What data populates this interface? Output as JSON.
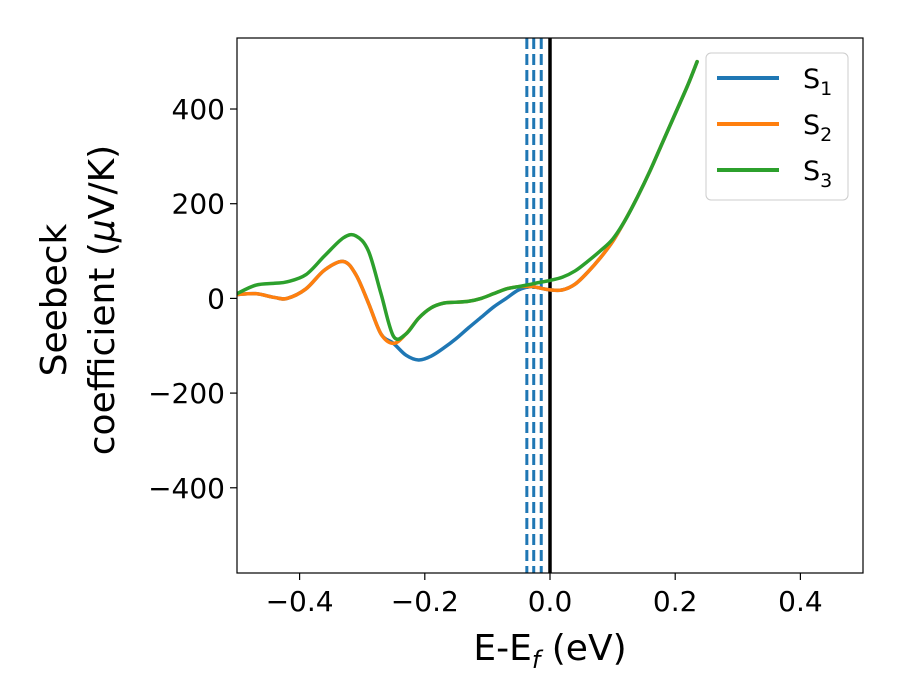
{
  "chart_data": {
    "type": "line",
    "xlabel": {
      "main": "E-E",
      "sub": "f",
      "unit": " (eV)"
    },
    "ylabel": {
      "line1": "Seebeck",
      "line2_prefix": "coefficient  (",
      "mu": "μ",
      "line2_suffix": "V/K)"
    },
    "xlim": [
      -0.5,
      0.5
    ],
    "ylim": [
      -580,
      550
    ],
    "xticks": [
      -0.4,
      -0.2,
      0.0,
      0.2,
      0.4
    ],
    "xtick_labels": [
      "−0.4",
      "−0.2",
      "0.0",
      "0.2",
      "0.4"
    ],
    "yticks": [
      -400,
      -200,
      0,
      200,
      400
    ],
    "ytick_labels": [
      "−400",
      "−200",
      "0",
      "200",
      "400"
    ],
    "grid": false,
    "legend_position": "top-right",
    "vertical_lines": [
      {
        "x": -0.037,
        "style": "dashed",
        "color": "#1f77b4"
      },
      {
        "x": -0.026,
        "style": "dashed",
        "color": "#1f77b4"
      },
      {
        "x": -0.014,
        "style": "dashed",
        "color": "#1f77b4"
      },
      {
        "x": 0.0,
        "style": "solid",
        "color": "#000000"
      }
    ],
    "series": [
      {
        "name": "S",
        "sub": "1",
        "color": "#1f77b4",
        "x": [
          -0.5,
          -0.47,
          -0.44,
          -0.42,
          -0.39,
          -0.36,
          -0.33,
          -0.31,
          -0.29,
          -0.27,
          -0.25,
          -0.23,
          -0.21,
          -0.19,
          -0.17,
          -0.15,
          -0.13,
          -0.11,
          -0.09,
          -0.07,
          -0.05,
          -0.03,
          -0.02,
          0.0,
          0.02,
          0.04,
          0.06,
          0.08,
          0.1,
          0.12,
          0.14,
          0.16,
          0.18,
          0.2,
          0.22,
          0.235
        ],
        "y": [
          8,
          10,
          2,
          0,
          20,
          60,
          78,
          50,
          -10,
          -75,
          -95,
          -120,
          -130,
          -122,
          -105,
          -85,
          -62,
          -40,
          -18,
          0,
          18,
          25,
          23,
          18,
          18,
          30,
          55,
          85,
          120,
          165,
          215,
          270,
          330,
          390,
          450,
          500
        ]
      },
      {
        "name": "S",
        "sub": "2",
        "color": "#ff7f0e",
        "x": [
          -0.5,
          -0.47,
          -0.44,
          -0.42,
          -0.39,
          -0.36,
          -0.33,
          -0.31,
          -0.29,
          -0.27,
          -0.25,
          -0.23,
          -0.21,
          -0.19,
          -0.17,
          -0.15,
          -0.13,
          -0.11,
          -0.09,
          -0.07,
          -0.05,
          -0.03,
          -0.02,
          0.0,
          0.02,
          0.04,
          0.06,
          0.08,
          0.1,
          0.12,
          0.14,
          0.16,
          0.18,
          0.2,
          0.22,
          0.235
        ],
        "y": [
          8,
          10,
          2,
          0,
          20,
          60,
          78,
          50,
          -10,
          -75,
          -95,
          -75,
          -42,
          -20,
          -10,
          -8,
          -6,
          0,
          10,
          20,
          25,
          25,
          23,
          18,
          18,
          30,
          55,
          85,
          120,
          165,
          215,
          270,
          330,
          390,
          450,
          500
        ]
      },
      {
        "name": "S",
        "sub": "3",
        "color": "#2ca02c",
        "x": [
          -0.5,
          -0.47,
          -0.44,
          -0.42,
          -0.39,
          -0.36,
          -0.33,
          -0.31,
          -0.29,
          -0.27,
          -0.25,
          -0.23,
          -0.21,
          -0.19,
          -0.17,
          -0.15,
          -0.13,
          -0.11,
          -0.09,
          -0.07,
          -0.05,
          -0.03,
          -0.02,
          0.0,
          0.02,
          0.04,
          0.06,
          0.08,
          0.1,
          0.12,
          0.14,
          0.16,
          0.18,
          0.2,
          0.22,
          0.235
        ],
        "y": [
          10,
          28,
          32,
          35,
          50,
          90,
          128,
          132,
          100,
          10,
          -80,
          -75,
          -42,
          -20,
          -10,
          -8,
          -6,
          0,
          10,
          20,
          25,
          30,
          33,
          38,
          45,
          58,
          78,
          100,
          125,
          165,
          215,
          270,
          330,
          390,
          450,
          500
        ]
      }
    ]
  }
}
